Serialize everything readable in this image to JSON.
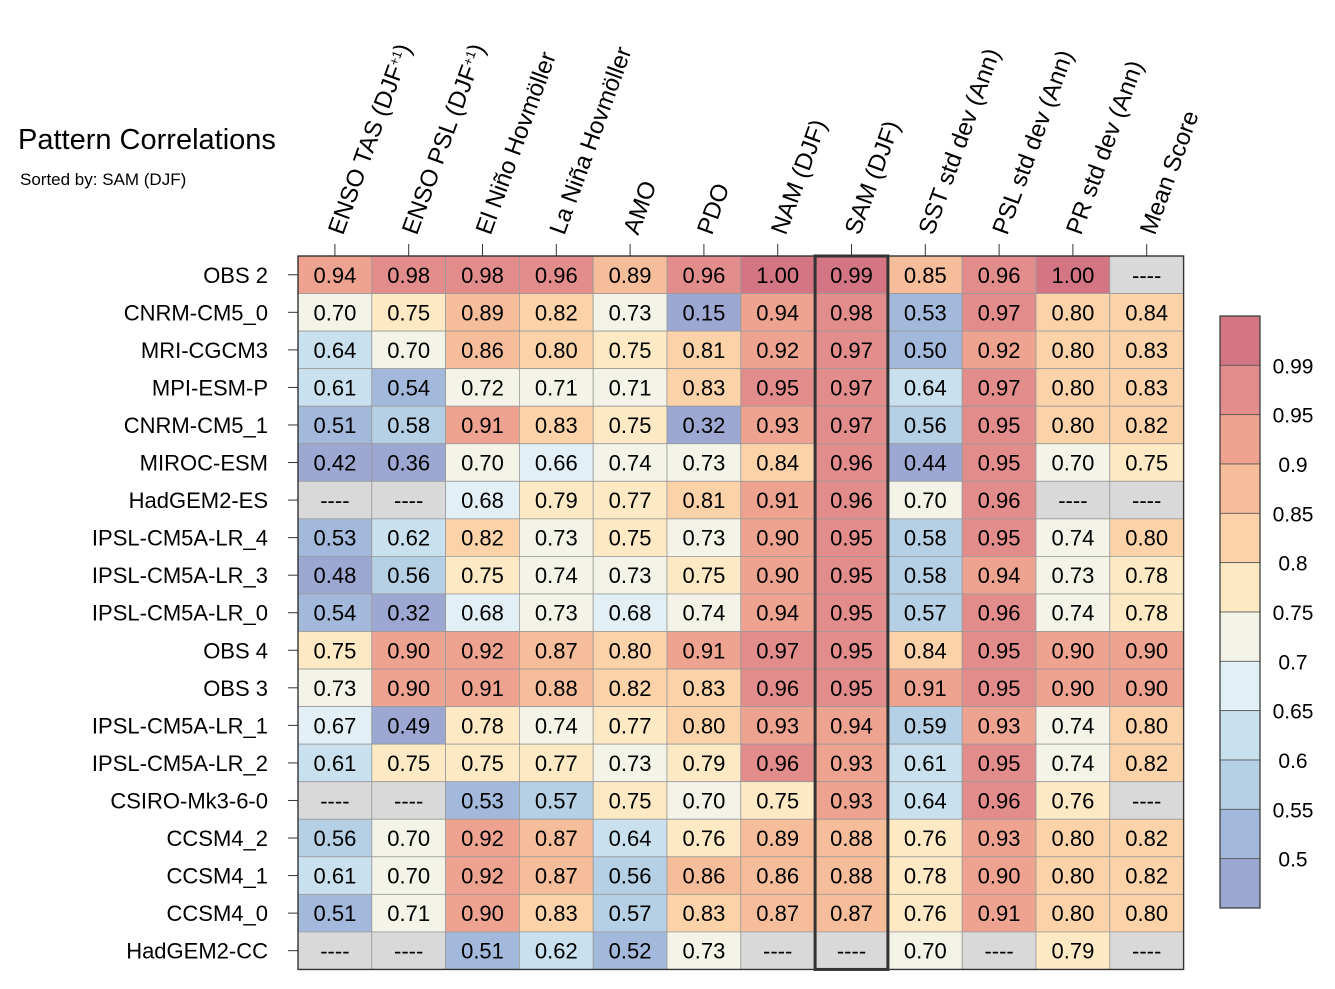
{
  "title": "Pattern Correlations",
  "subtitle": "Sorted by: SAM (DJF)",
  "chart_data": {
    "type": "heatmap",
    "highlighted_column": "SAM (DJF)",
    "columns": [
      "ENSO TAS (DJF+1)",
      "ENSO PSL (DJF+1)",
      "El Niño Hovmöller",
      "La Niña Hovmöller",
      "AMO",
      "PDO",
      "NAM (DJF)",
      "SAM (DJF)",
      "SST std dev (Ann)",
      "PSL std dev (Ann)",
      "PR std dev (Ann)",
      "Mean Score"
    ],
    "rows": [
      "OBS 2",
      "CNRM-CM5_0",
      "MRI-CGCM3",
      "MPI-ESM-P",
      "CNRM-CM5_1",
      "MIROC-ESM",
      "HadGEM2-ES",
      "IPSL-CM5A-LR_4",
      "IPSL-CM5A-LR_3",
      "IPSL-CM5A-LR_0",
      "OBS 4",
      "OBS 3",
      "IPSL-CM5A-LR_1",
      "IPSL-CM5A-LR_2",
      "CSIRO-Mk3-6-0",
      "CCSM4_2",
      "CCSM4_1",
      "CCSM4_0",
      "HadGEM2-CC"
    ],
    "values": [
      [
        "0.94",
        "0.98",
        "0.98",
        "0.96",
        "0.89",
        "0.96",
        "1.00",
        "0.99",
        "0.85",
        "0.96",
        "1.00",
        "----"
      ],
      [
        "0.70",
        "0.75",
        "0.89",
        "0.82",
        "0.73",
        "0.15",
        "0.94",
        "0.98",
        "0.53",
        "0.97",
        "0.80",
        "0.84"
      ],
      [
        "0.64",
        "0.70",
        "0.86",
        "0.80",
        "0.75",
        "0.81",
        "0.92",
        "0.97",
        "0.50",
        "0.92",
        "0.80",
        "0.83"
      ],
      [
        "0.61",
        "0.54",
        "0.72",
        "0.71",
        "0.71",
        "0.83",
        "0.95",
        "0.97",
        "0.64",
        "0.97",
        "0.80",
        "0.83"
      ],
      [
        "0.51",
        "0.58",
        "0.91",
        "0.83",
        "0.75",
        "0.32",
        "0.93",
        "0.97",
        "0.56",
        "0.95",
        "0.80",
        "0.82"
      ],
      [
        "0.42",
        "0.36",
        "0.70",
        "0.66",
        "0.74",
        "0.73",
        "0.84",
        "0.96",
        "0.44",
        "0.95",
        "0.70",
        "0.75"
      ],
      [
        "----",
        "----",
        "0.68",
        "0.79",
        "0.77",
        "0.81",
        "0.91",
        "0.96",
        "0.70",
        "0.96",
        "----",
        "----"
      ],
      [
        "0.53",
        "0.62",
        "0.82",
        "0.73",
        "0.75",
        "0.73",
        "0.90",
        "0.95",
        "0.58",
        "0.95",
        "0.74",
        "0.80"
      ],
      [
        "0.48",
        "0.56",
        "0.75",
        "0.74",
        "0.73",
        "0.75",
        "0.90",
        "0.95",
        "0.58",
        "0.94",
        "0.73",
        "0.78"
      ],
      [
        "0.54",
        "0.32",
        "0.68",
        "0.73",
        "0.68",
        "0.74",
        "0.94",
        "0.95",
        "0.57",
        "0.96",
        "0.74",
        "0.78"
      ],
      [
        "0.75",
        "0.90",
        "0.92",
        "0.87",
        "0.80",
        "0.91",
        "0.97",
        "0.95",
        "0.84",
        "0.95",
        "0.90",
        "0.90"
      ],
      [
        "0.73",
        "0.90",
        "0.91",
        "0.88",
        "0.82",
        "0.83",
        "0.96",
        "0.95",
        "0.91",
        "0.95",
        "0.90",
        "0.90"
      ],
      [
        "0.67",
        "0.49",
        "0.78",
        "0.74",
        "0.77",
        "0.80",
        "0.93",
        "0.94",
        "0.59",
        "0.93",
        "0.74",
        "0.80"
      ],
      [
        "0.61",
        "0.75",
        "0.75",
        "0.77",
        "0.73",
        "0.79",
        "0.96",
        "0.93",
        "0.61",
        "0.95",
        "0.74",
        "0.82"
      ],
      [
        "----",
        "----",
        "0.53",
        "0.57",
        "0.75",
        "0.70",
        "0.75",
        "0.93",
        "0.64",
        "0.96",
        "0.76",
        "----"
      ],
      [
        "0.56",
        "0.70",
        "0.92",
        "0.87",
        "0.64",
        "0.76",
        "0.89",
        "0.88",
        "0.76",
        "0.93",
        "0.80",
        "0.82"
      ],
      [
        "0.61",
        "0.70",
        "0.92",
        "0.87",
        "0.56",
        "0.86",
        "0.86",
        "0.88",
        "0.78",
        "0.90",
        "0.80",
        "0.82"
      ],
      [
        "0.51",
        "0.71",
        "0.90",
        "0.83",
        "0.57",
        "0.83",
        "0.87",
        "0.87",
        "0.76",
        "0.91",
        "0.80",
        "0.80"
      ],
      [
        "----",
        "----",
        "0.51",
        "0.62",
        "0.52",
        "0.73",
        "----",
        "----",
        "0.70",
        "----",
        "0.79",
        "----"
      ]
    ],
    "missing_label": "----",
    "missing_color": "#d9d9d9",
    "colorbar": {
      "tick_labels": [
        "0.99",
        "0.95",
        "0.9",
        "0.85",
        "0.8",
        "0.75",
        "0.7",
        "0.65",
        "0.6",
        "0.55",
        "0.5"
      ],
      "bin_colors_top_to_bottom": [
        "#d47583",
        "#e38c8c",
        "#eea390",
        "#f6bd9a",
        "#fcd3a9",
        "#fde9c4",
        "#f3f3e8",
        "#e2eff5",
        "#c9e1ee",
        "#b5cfe5",
        "#a3b9dc",
        "#9ca8d1"
      ]
    }
  }
}
